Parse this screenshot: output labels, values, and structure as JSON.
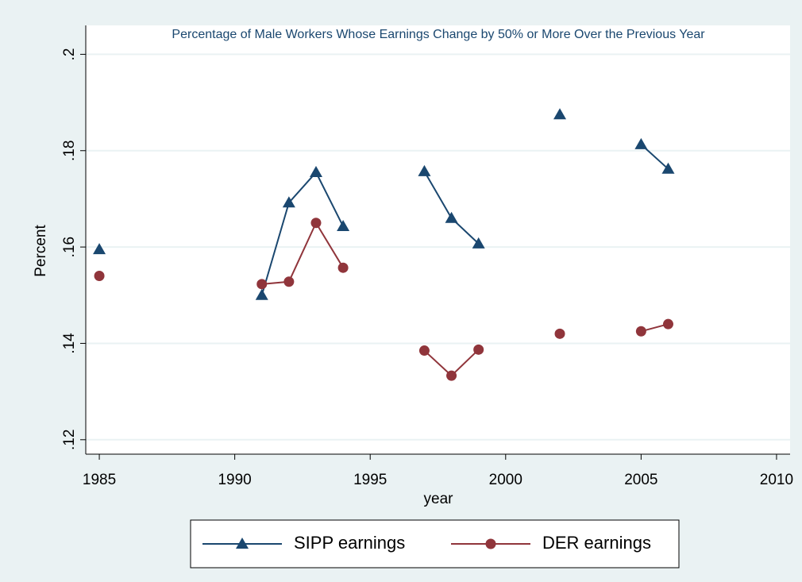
{
  "chart_data": {
    "type": "line",
    "title": "Percentage of Male Workers Whose Earnings Change by 50% or More Over the Previous Year",
    "x_label": "year",
    "y_label": "Percent",
    "x": [
      1985,
      1986,
      1987,
      1988,
      1989,
      1990,
      1991,
      1992,
      1993,
      1994,
      1995,
      1996,
      1997,
      1998,
      1999,
      2000,
      2001,
      2002,
      2003,
      2004,
      2005,
      2006
    ],
    "series": [
      {
        "name": "SIPP earnings",
        "color": "#1a476f",
        "marker": "triangle",
        "values": [
          0.1595,
          null,
          null,
          null,
          null,
          null,
          0.15,
          0.1692,
          0.1755,
          0.1643,
          null,
          null,
          0.1757,
          0.166,
          0.1607,
          null,
          null,
          0.1875,
          null,
          null,
          0.1813,
          0.1762
        ]
      },
      {
        "name": "DER earnings",
        "color": "#90353b",
        "marker": "circle",
        "values": [
          0.154,
          null,
          null,
          null,
          null,
          null,
          0.1523,
          0.1528,
          0.165,
          0.1557,
          null,
          null,
          0.1385,
          0.1333,
          0.1387,
          null,
          null,
          0.142,
          null,
          null,
          0.1425,
          0.144
        ]
      }
    ],
    "xlim": [
      1984.5,
      2010.5
    ],
    "xticks": [
      1985,
      1990,
      1995,
      2000,
      2005,
      2010
    ],
    "ylim": [
      0.117,
      0.206
    ],
    "yticks": [
      {
        "value": 0.12,
        "label": ".12"
      },
      {
        "value": 0.14,
        "label": ".14"
      },
      {
        "value": 0.16,
        "label": ".16"
      },
      {
        "value": 0.18,
        "label": ".18"
      },
      {
        "value": 0.2,
        "label": ".2"
      }
    ],
    "grid": true,
    "legend": "bottom"
  }
}
